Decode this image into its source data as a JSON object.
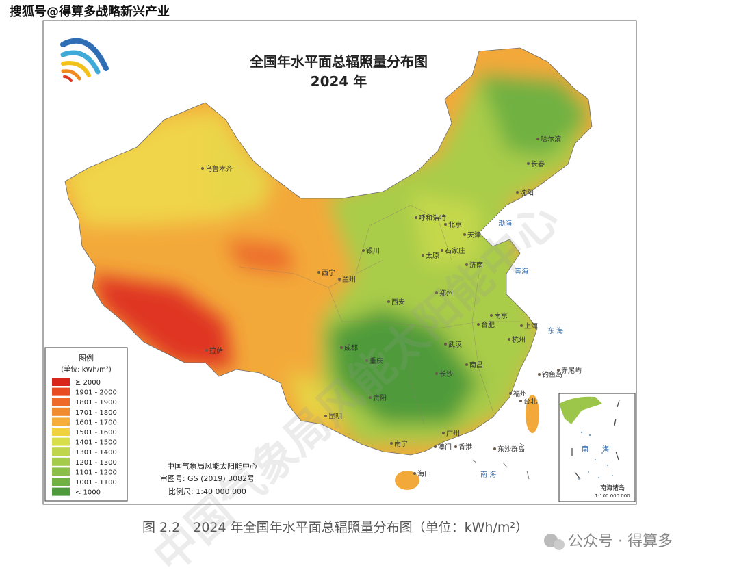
{
  "watermark": "搜狐号@得算多战略新兴产业",
  "map": {
    "title": "全国年水平面总辐照量分布图",
    "year": "2024 年",
    "legend": {
      "title": "图例",
      "unit": "(单位: kWh/m²)",
      "items": [
        {
          "label": "≥ 2000",
          "color": "#d9261c"
        },
        {
          "label": "1901 - 2000",
          "color": "#e84a22"
        },
        {
          "label": "1801 - 1900",
          "color": "#ee6a2a"
        },
        {
          "label": "1701 - 1800",
          "color": "#f08b30"
        },
        {
          "label": "1601 - 1700",
          "color": "#f5ae3a"
        },
        {
          "label": "1501 - 1600",
          "color": "#f1d13e"
        },
        {
          "label": "1401 - 1500",
          "color": "#d8de4a"
        },
        {
          "label": "1301 - 1400",
          "color": "#bfd64c"
        },
        {
          "label": "1201 - 1300",
          "color": "#a5cb4a"
        },
        {
          "label": "1101 - 1200",
          "color": "#8bbf48"
        },
        {
          "label": "1001 - 1100",
          "color": "#6fb143"
        },
        {
          "label": "< 1000",
          "color": "#4e9b3b"
        }
      ]
    },
    "credits": [
      "中国气象局风能太阳能中心",
      "审图号: GS (2019) 3082号",
      "比例尺: 1:40 000 000"
    ],
    "cities": [
      "乌鲁木齐",
      "哈尔滨",
      "长春",
      "沈阳",
      "呼和浩特",
      "北京",
      "天津",
      "银川",
      "太原",
      "石家庄",
      "济南",
      "西宁",
      "兰州",
      "西安",
      "郑州",
      "南京",
      "合肥",
      "上海",
      "杭州",
      "拉萨",
      "成都",
      "重庆",
      "武汉",
      "南昌",
      "长沙",
      "福州",
      "贵阳",
      "台北",
      "昆明",
      "南宁",
      "广州",
      "澳门",
      "香港",
      "海口",
      "东沙群岛",
      "钓鱼岛",
      "赤尾屿"
    ],
    "seas": [
      "渤海",
      "黄海",
      "东 海",
      "南 海"
    ],
    "inset": {
      "labels": [
        "南",
        "海"
      ],
      "title": "南海诸岛",
      "scale": "1:100 000 000"
    }
  },
  "caption": "图 2.2　2024 年全国年水平面总辐照量分布图（单位：kWh/m²）",
  "footer": "公众号 · 得算多",
  "diagonal_watermark": "中国气象局风能太阳能中心"
}
